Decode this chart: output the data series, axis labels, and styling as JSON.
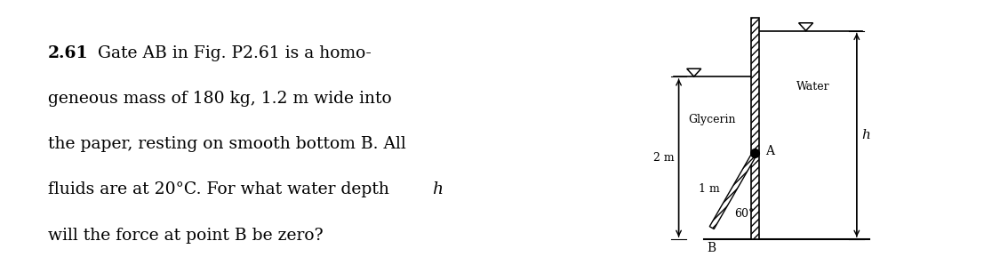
{
  "bg_color": "#ffffff",
  "problem_number": "2.61",
  "problem_text_lines": [
    "Gate AB in Fig. P2.61 is a homo-",
    "geneous mass of 180 kg, 1.2 m wide into",
    "the paper, resting on smooth bottom B. All",
    "fluids are at 20°C. For what water depth ",
    "will the force at point B be zero?"
  ],
  "label_h_italic": "h",
  "label_glycerin": "Glycerin",
  "label_water": "Water",
  "label_2m": "2 m",
  "label_1m": "1 m",
  "label_60": "60°",
  "label_A": "A",
  "label_B": "B",
  "label_h": "h",
  "text_fontsize": 13.5,
  "diagram_fontsize": 9
}
